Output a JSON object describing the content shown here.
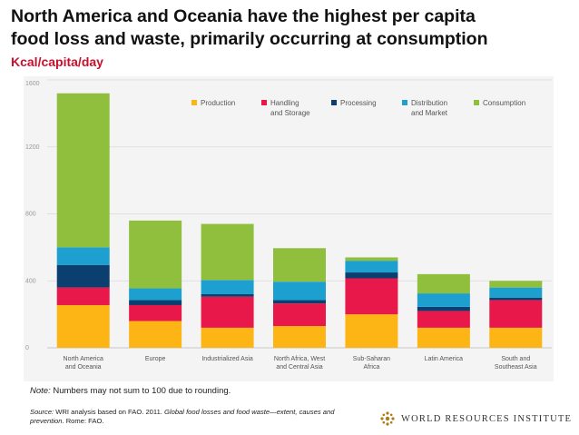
{
  "title_line1": "North America and Oceania have the highest per capita",
  "title_line2": "food loss and waste, primarily occurring at consumption",
  "subtitle": "Kcal/capita/day",
  "note_label": "Note:",
  "note_text": " Numbers may not sum to 100 due to rounding.",
  "source_label": "Source:",
  "source_text1": " WRI analysis based on FAO. 2011. ",
  "source_title": "Global food losses and food waste—extent, causes and prevention",
  "source_text2": ". Rome: FAO.",
  "logo_text": "WORLD RESOURCES INSTITUTE",
  "chart_data": {
    "type": "bar",
    "stacked": true,
    "ylim": [
      0,
      1600
    ],
    "yticks": [
      0,
      400,
      800,
      1200,
      1600
    ],
    "grid": true,
    "legend_position": "top-right",
    "categories": [
      [
        "North America",
        "and Oceania"
      ],
      [
        "Europe"
      ],
      [
        "Industrialized Asia"
      ],
      [
        "North Africa, West",
        "and Central Asia"
      ],
      [
        "Sub-Saharan",
        "Africa"
      ],
      [
        "Latin America"
      ],
      [
        "South and",
        "Southeast Asia"
      ]
    ],
    "series": [
      {
        "name": [
          "Production"
        ],
        "color": "#fdb515",
        "values": [
          255,
          160,
          120,
          130,
          200,
          120,
          120
        ]
      },
      {
        "name": [
          "Handling",
          "and Storage"
        ],
        "color": "#e8194a",
        "values": [
          105,
          95,
          185,
          135,
          215,
          100,
          165
        ]
      },
      {
        "name": [
          "Processing"
        ],
        "color": "#0a3f70",
        "values": [
          135,
          30,
          15,
          20,
          35,
          25,
          15
        ]
      },
      {
        "name": [
          "Distribution",
          "and Market"
        ],
        "color": "#1d9fd0",
        "values": [
          105,
          70,
          85,
          110,
          70,
          80,
          60
        ]
      },
      {
        "name": [
          "Consumption"
        ],
        "color": "#8fbf3d",
        "values": [
          920,
          405,
          335,
          200,
          20,
          115,
          40
        ]
      }
    ]
  }
}
